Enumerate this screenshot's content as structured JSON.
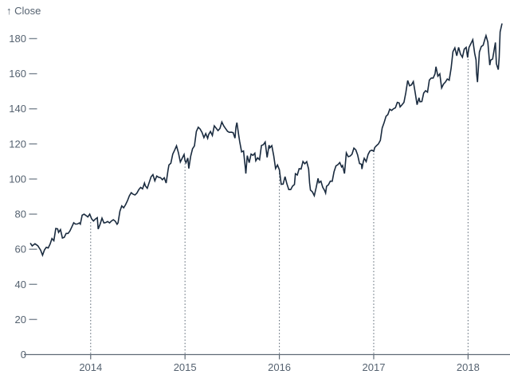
{
  "page": {
    "background": "#ffffff"
  },
  "chart": {
    "y_axis_title": "↑ Close",
    "colors": {
      "line": "#1a2b3f",
      "axis_text": "#556270",
      "tick_dash": "#7e8994",
      "baseline": "#5f6a76",
      "rule_dotted": "#64707c",
      "background": "#ffffff"
    }
  },
  "chart_data": {
    "type": "line",
    "title": "",
    "xlabel": "",
    "ylabel": "Close",
    "legend": "none",
    "grid": "dotted vertical rules at each year start, drawn from x-axis up to the line value",
    "ylim": [
      0,
      180
    ],
    "y_ticks": [
      0,
      20,
      40,
      60,
      80,
      100,
      120,
      140,
      160,
      180
    ],
    "x_ticks": [
      2014,
      2015,
      2016,
      2017,
      2018
    ],
    "x_domain_years": [
      2013.36,
      2018.36
    ],
    "series": [
      {
        "name": "Close",
        "points": [
          [
            2013.36,
            63.5
          ],
          [
            2013.38,
            61.9
          ],
          [
            2013.41,
            63.1
          ],
          [
            2013.44,
            62.0
          ],
          [
            2013.47,
            59.5
          ],
          [
            2013.49,
            56.6
          ],
          [
            2013.51,
            59.6
          ],
          [
            2013.53,
            61.1
          ],
          [
            2013.55,
            60.7
          ],
          [
            2013.57,
            63.0
          ],
          [
            2013.59,
            66.1
          ],
          [
            2013.61,
            64.9
          ],
          [
            2013.63,
            71.8
          ],
          [
            2013.65,
            71.6
          ],
          [
            2013.66,
            69.6
          ],
          [
            2013.68,
            71.2
          ],
          [
            2013.7,
            66.4
          ],
          [
            2013.72,
            66.8
          ],
          [
            2013.74,
            69.0
          ],
          [
            2013.76,
            69.0
          ],
          [
            2013.78,
            70.4
          ],
          [
            2013.8,
            72.7
          ],
          [
            2013.82,
            75.1
          ],
          [
            2013.84,
            74.3
          ],
          [
            2013.86,
            74.4
          ],
          [
            2013.88,
            75.0
          ],
          [
            2013.89,
            74.3
          ],
          [
            2013.91,
            79.4
          ],
          [
            2013.93,
            80.0
          ],
          [
            2013.95,
            79.2
          ],
          [
            2013.97,
            78.4
          ],
          [
            2013.99,
            80.0
          ],
          [
            2014.01,
            77.3
          ],
          [
            2014.03,
            76.1
          ],
          [
            2014.05,
            77.2
          ],
          [
            2014.07,
            78.0
          ],
          [
            2014.08,
            71.5
          ],
          [
            2014.1,
            74.2
          ],
          [
            2014.12,
            77.7
          ],
          [
            2014.14,
            75.0
          ],
          [
            2014.16,
            75.2
          ],
          [
            2014.18,
            75.8
          ],
          [
            2014.2,
            75.0
          ],
          [
            2014.22,
            76.1
          ],
          [
            2014.24,
            76.8
          ],
          [
            2014.26,
            76.0
          ],
          [
            2014.28,
            74.2
          ],
          [
            2014.29,
            75.0
          ],
          [
            2014.31,
            81.7
          ],
          [
            2014.33,
            84.7
          ],
          [
            2014.35,
            83.6
          ],
          [
            2014.37,
            85.4
          ],
          [
            2014.39,
            87.7
          ],
          [
            2014.41,
            90.4
          ],
          [
            2014.43,
            92.2
          ],
          [
            2014.45,
            91.3
          ],
          [
            2014.47,
            90.9
          ],
          [
            2014.49,
            92.0
          ],
          [
            2014.51,
            94.0
          ],
          [
            2014.53,
            95.2
          ],
          [
            2014.55,
            94.4
          ],
          [
            2014.57,
            97.7
          ],
          [
            2014.58,
            96.1
          ],
          [
            2014.6,
            94.7
          ],
          [
            2014.62,
            98.0
          ],
          [
            2014.64,
            101.3
          ],
          [
            2014.66,
            102.5
          ],
          [
            2014.68,
            99.0
          ],
          [
            2014.7,
            101.7
          ],
          [
            2014.72,
            101.0
          ],
          [
            2014.74,
            100.8
          ],
          [
            2014.76,
            99.6
          ],
          [
            2014.78,
            100.7
          ],
          [
            2014.8,
            97.7
          ],
          [
            2014.82,
            105.2
          ],
          [
            2014.83,
            108.0
          ],
          [
            2014.85,
            109.0
          ],
          [
            2014.87,
            114.2
          ],
          [
            2014.89,
            116.5
          ],
          [
            2014.91,
            118.9
          ],
          [
            2014.93,
            115.0
          ],
          [
            2014.95,
            109.7
          ],
          [
            2014.97,
            111.8
          ],
          [
            2014.99,
            114.0
          ],
          [
            2015.0,
            110.4
          ],
          [
            2015.01,
            109.3
          ],
          [
            2015.03,
            112.0
          ],
          [
            2015.04,
            106.0
          ],
          [
            2015.06,
            113.0
          ],
          [
            2015.08,
            117.2
          ],
          [
            2015.1,
            118.9
          ],
          [
            2015.12,
            127.1
          ],
          [
            2015.14,
            129.5
          ],
          [
            2015.16,
            128.5
          ],
          [
            2015.18,
            126.6
          ],
          [
            2015.2,
            123.6
          ],
          [
            2015.22,
            125.9
          ],
          [
            2015.24,
            123.2
          ],
          [
            2015.25,
            125.3
          ],
          [
            2015.27,
            127.1
          ],
          [
            2015.29,
            124.8
          ],
          [
            2015.31,
            130.3
          ],
          [
            2015.33,
            129.0
          ],
          [
            2015.35,
            127.6
          ],
          [
            2015.37,
            128.8
          ],
          [
            2015.39,
            132.5
          ],
          [
            2015.41,
            130.3
          ],
          [
            2015.43,
            128.7
          ],
          [
            2015.45,
            127.2
          ],
          [
            2015.47,
            126.6
          ],
          [
            2015.49,
            126.7
          ],
          [
            2015.51,
            126.4
          ],
          [
            2015.53,
            123.3
          ],
          [
            2015.54,
            129.6
          ],
          [
            2015.55,
            132.1
          ],
          [
            2015.57,
            124.5
          ],
          [
            2015.58,
            121.3
          ],
          [
            2015.6,
            115.5
          ],
          [
            2015.62,
            116.0
          ],
          [
            2015.64,
            105.8
          ],
          [
            2015.645,
            103.1
          ],
          [
            2015.66,
            113.3
          ],
          [
            2015.68,
            109.3
          ],
          [
            2015.7,
            114.2
          ],
          [
            2015.72,
            113.5
          ],
          [
            2015.74,
            114.7
          ],
          [
            2015.75,
            110.4
          ],
          [
            2015.77,
            112.1
          ],
          [
            2015.79,
            111.0
          ],
          [
            2015.81,
            119.1
          ],
          [
            2015.83,
            119.5
          ],
          [
            2015.85,
            121.1
          ],
          [
            2015.87,
            112.3
          ],
          [
            2015.89,
            119.3
          ],
          [
            2015.9,
            117.8
          ],
          [
            2015.92,
            119.0
          ],
          [
            2015.94,
            113.2
          ],
          [
            2015.96,
            106.0
          ],
          [
            2015.98,
            108.0
          ],
          [
            2016.0,
            105.3
          ],
          [
            2016.02,
            97.0
          ],
          [
            2016.04,
            97.1
          ],
          [
            2016.06,
            101.4
          ],
          [
            2016.08,
            97.3
          ],
          [
            2016.1,
            94.0
          ],
          [
            2016.12,
            94.0
          ],
          [
            2016.14,
            96.0
          ],
          [
            2016.16,
            96.9
          ],
          [
            2016.17,
            103.0
          ],
          [
            2016.19,
            102.3
          ],
          [
            2016.21,
            105.9
          ],
          [
            2016.23,
            105.7
          ],
          [
            2016.25,
            110.0
          ],
          [
            2016.27,
            108.7
          ],
          [
            2016.29,
            109.9
          ],
          [
            2016.31,
            105.7
          ],
          [
            2016.32,
            97.8
          ],
          [
            2016.33,
            93.7
          ],
          [
            2016.35,
            92.7
          ],
          [
            2016.37,
            90.5
          ],
          [
            2016.39,
            95.2
          ],
          [
            2016.41,
            100.4
          ],
          [
            2016.42,
            97.9
          ],
          [
            2016.44,
            98.8
          ],
          [
            2016.46,
            95.3
          ],
          [
            2016.48,
            93.4
          ],
          [
            2016.49,
            92.0
          ],
          [
            2016.5,
            95.9
          ],
          [
            2016.52,
            96.7
          ],
          [
            2016.54,
            98.8
          ],
          [
            2016.56,
            98.7
          ],
          [
            2016.58,
            104.2
          ],
          [
            2016.6,
            107.5
          ],
          [
            2016.62,
            108.2
          ],
          [
            2016.64,
            109.4
          ],
          [
            2016.66,
            106.9
          ],
          [
            2016.67,
            107.7
          ],
          [
            2016.69,
            103.1
          ],
          [
            2016.71,
            114.9
          ],
          [
            2016.73,
            112.7
          ],
          [
            2016.75,
            113.1
          ],
          [
            2016.77,
            114.1
          ],
          [
            2016.79,
            117.6
          ],
          [
            2016.81,
            116.6
          ],
          [
            2016.83,
            113.7
          ],
          [
            2016.85,
            108.8
          ],
          [
            2016.87,
            108.4
          ],
          [
            2016.875,
            105.7
          ],
          [
            2016.89,
            110.1
          ],
          [
            2016.9,
            111.8
          ],
          [
            2016.92,
            109.9
          ],
          [
            2016.94,
            114.0
          ],
          [
            2016.96,
            116.0
          ],
          [
            2016.98,
            116.5
          ],
          [
            2017.0,
            115.8
          ],
          [
            2017.01,
            117.9
          ],
          [
            2017.03,
            119.0
          ],
          [
            2017.05,
            120.0
          ],
          [
            2017.07,
            122.0
          ],
          [
            2017.09,
            129.1
          ],
          [
            2017.11,
            132.1
          ],
          [
            2017.13,
            135.7
          ],
          [
            2017.15,
            136.7
          ],
          [
            2017.17,
            139.8
          ],
          [
            2017.19,
            139.1
          ],
          [
            2017.21,
            140.0
          ],
          [
            2017.23,
            140.6
          ],
          [
            2017.25,
            143.7
          ],
          [
            2017.27,
            143.3
          ],
          [
            2017.28,
            141.1
          ],
          [
            2017.3,
            142.3
          ],
          [
            2017.32,
            143.7
          ],
          [
            2017.34,
            149.0
          ],
          [
            2017.36,
            156.1
          ],
          [
            2017.38,
            153.1
          ],
          [
            2017.4,
            153.6
          ],
          [
            2017.42,
            155.5
          ],
          [
            2017.44,
            149.0
          ],
          [
            2017.46,
            142.3
          ],
          [
            2017.48,
            146.3
          ],
          [
            2017.49,
            144.0
          ],
          [
            2017.51,
            144.2
          ],
          [
            2017.53,
            149.0
          ],
          [
            2017.55,
            150.3
          ],
          [
            2017.57,
            149.5
          ],
          [
            2017.59,
            156.4
          ],
          [
            2017.61,
            157.5
          ],
          [
            2017.63,
            157.5
          ],
          [
            2017.65,
            159.9
          ],
          [
            2017.66,
            164.0
          ],
          [
            2017.68,
            158.6
          ],
          [
            2017.7,
            159.9
          ],
          [
            2017.72,
            151.9
          ],
          [
            2017.74,
            154.1
          ],
          [
            2017.76,
            155.3
          ],
          [
            2017.78,
            157.0
          ],
          [
            2017.8,
            156.3
          ],
          [
            2017.82,
            163.1
          ],
          [
            2017.84,
            172.5
          ],
          [
            2017.86,
            174.7
          ],
          [
            2017.88,
            170.2
          ],
          [
            2017.9,
            175.0
          ],
          [
            2017.92,
            171.1
          ],
          [
            2017.94,
            169.4
          ],
          [
            2017.96,
            174.0
          ],
          [
            2017.98,
            175.0
          ],
          [
            2017.995,
            169.2
          ],
          [
            2018.002,
            172.3
          ],
          [
            2018.01,
            175.0
          ],
          [
            2018.03,
            177.1
          ],
          [
            2018.05,
            179.3
          ],
          [
            2018.07,
            171.5
          ],
          [
            2018.085,
            167.8
          ],
          [
            2018.09,
            160.5
          ],
          [
            2018.1,
            155.2
          ],
          [
            2018.12,
            172.4
          ],
          [
            2018.14,
            175.5
          ],
          [
            2018.16,
            176.2
          ],
          [
            2018.18,
            180.0
          ],
          [
            2018.19,
            181.7
          ],
          [
            2018.21,
            178.0
          ],
          [
            2018.23,
            164.9
          ],
          [
            2018.24,
            167.8
          ],
          [
            2018.26,
            168.4
          ],
          [
            2018.28,
            174.7
          ],
          [
            2018.29,
            177.8
          ],
          [
            2018.3,
            165.7
          ],
          [
            2018.32,
            162.3
          ],
          [
            2018.33,
            169.1
          ],
          [
            2018.34,
            183.8
          ],
          [
            2018.36,
            188.6
          ]
        ]
      }
    ]
  }
}
